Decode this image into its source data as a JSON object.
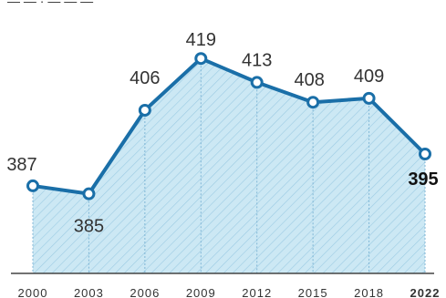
{
  "chart_data": {
    "type": "area",
    "x": [
      "2000",
      "2003",
      "2006",
      "2009",
      "2012",
      "2015",
      "2018",
      "2022"
    ],
    "values": [
      387,
      385,
      406,
      419,
      413,
      408,
      409,
      395
    ],
    "value_labels": [
      "387",
      "385",
      "406",
      "419",
      "413",
      "408",
      "409",
      "395"
    ],
    "title": "",
    "xlabel": "",
    "ylabel": "",
    "ylim": [
      365,
      425
    ],
    "grid": false,
    "line_color": "#1a6fa8",
    "fill_color": "#cce8f4",
    "hatch_color": "#9ccbe3",
    "marker_fill": "#ffffff",
    "highlight_last": true
  }
}
